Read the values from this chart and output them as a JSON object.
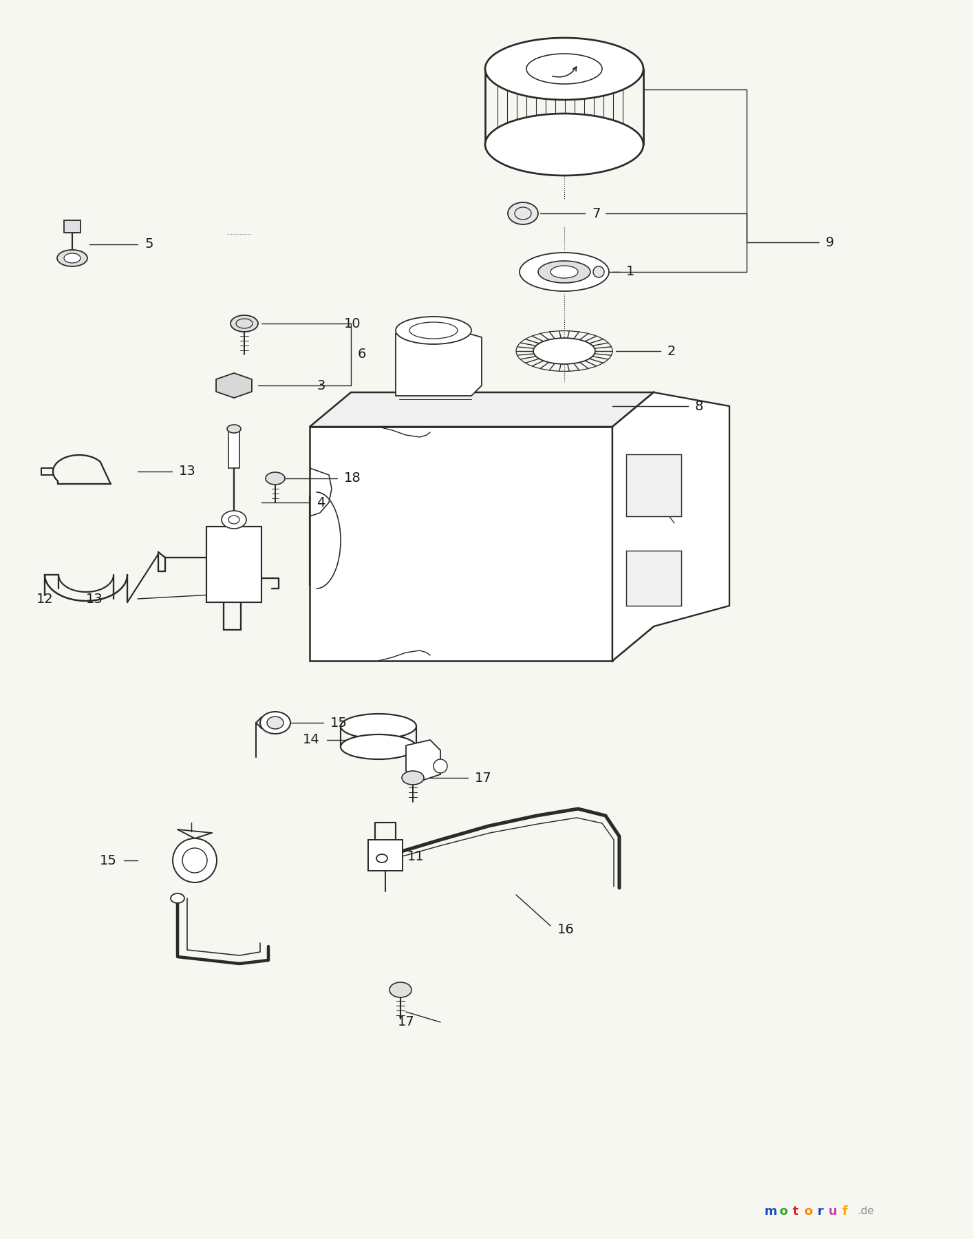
{
  "bg": "#f7f7f2",
  "lc": "#2a2a2a",
  "lw": 1.3,
  "fig_w": 14.14,
  "fig_h": 18.0,
  "wm_letters": [
    "m",
    "o",
    "t",
    "o",
    "r",
    "u",
    "f"
  ],
  "wm_colors": [
    "#1a4fbb",
    "#2aaa22",
    "#dd2222",
    "#ff8800",
    "#2244bb",
    "#cc44aa",
    "#ffaa00"
  ],
  "wm_de_color": "#888888",
  "label_fs": 14
}
